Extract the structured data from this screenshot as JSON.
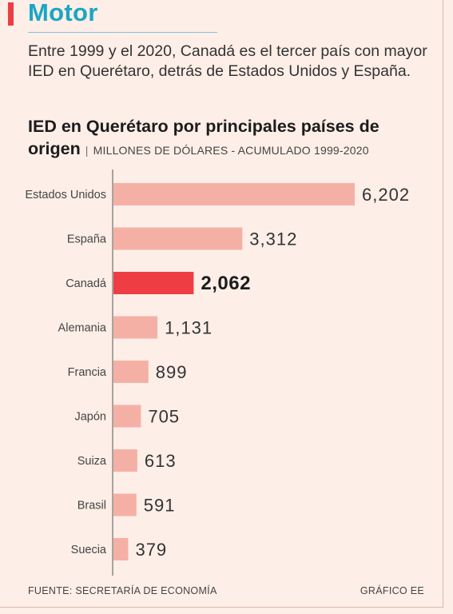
{
  "header": {
    "section": "Motor",
    "intro": "Entre 1999 y el 2020, Canadá es el tercer país con mayor IED en Querétaro, detrás de Estados Unidos y España."
  },
  "colors": {
    "accent": "#ee3d43",
    "section_title": "#1aa6c4",
    "bar": "#f5b0a6",
    "bar_highlight": "#ee3d43",
    "background": "#fdeee7"
  },
  "chart_data": {
    "type": "bar",
    "orientation": "horizontal",
    "title": "IED en Querétaro por principales países de origen",
    "subtitle": "MILLONES DE DÓLARES - ACUMULADO 1999-2020",
    "categories": [
      "Estados Unidos",
      "España",
      "Canadá",
      "Alemania",
      "Francia",
      "Japón",
      "Suiza",
      "Brasil",
      "Suecia"
    ],
    "values": [
      6202,
      3312,
      2062,
      1131,
      899,
      705,
      613,
      591,
      379
    ],
    "value_labels": [
      "6,202",
      "3,312",
      "2,062",
      "1,131",
      "899",
      "705",
      "613",
      "591",
      "379"
    ],
    "highlight": "Canadá",
    "xlim": [
      0,
      6202
    ]
  },
  "footer": {
    "source": "FUENTE: SECRETARÍA DE ECONOMÍA",
    "credit": "GRÁFICO EE"
  }
}
